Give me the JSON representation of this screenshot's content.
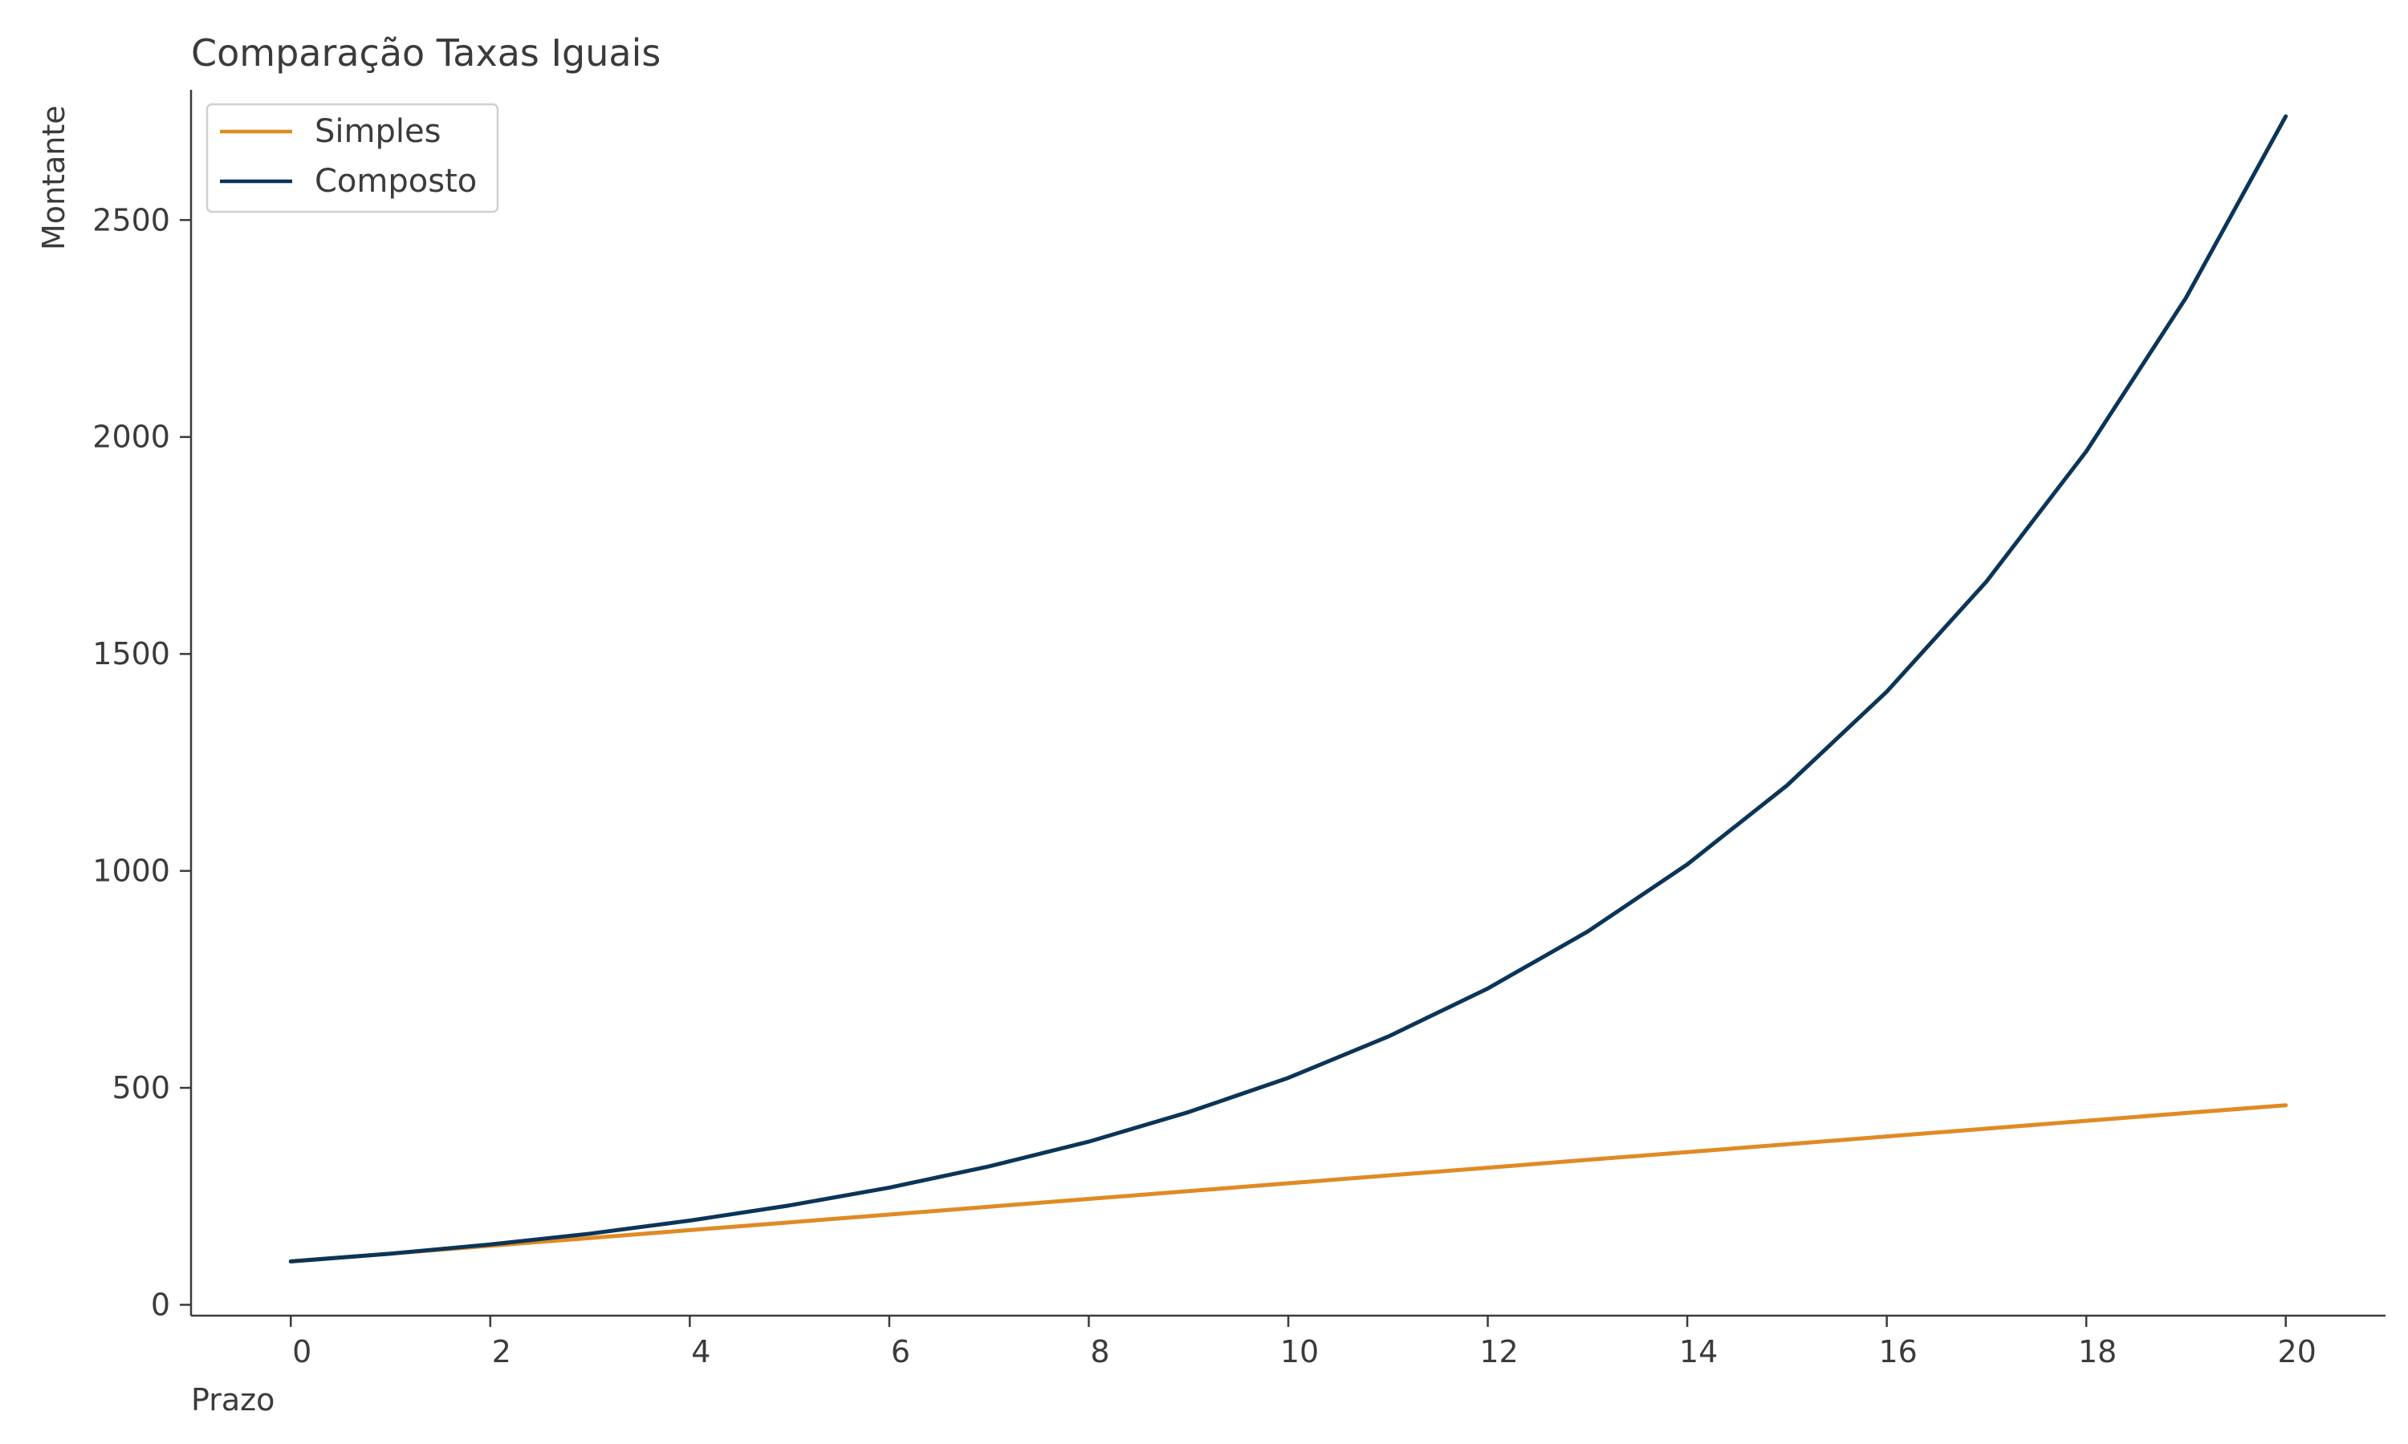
{
  "chart_data": {
    "type": "line",
    "title": "Comparação Taxas Iguais",
    "xlabel": "Prazo",
    "ylabel": "Montante",
    "xlim": [
      -1,
      21
    ],
    "ylim": [
      -25,
      2800
    ],
    "x_ticks": [
      0,
      2,
      4,
      6,
      8,
      10,
      12,
      14,
      16,
      18,
      20
    ],
    "y_ticks": [
      0,
      500,
      1000,
      1500,
      2000,
      2500
    ],
    "x_tick_labels": [
      "0",
      "2",
      "4",
      "6",
      "8",
      "10",
      "12",
      "14",
      "16",
      "18",
      "20"
    ],
    "y_tick_labels": [
      "0",
      "500",
      "1000",
      "1500",
      "2000",
      "2500"
    ],
    "grid": false,
    "legend_position": "top-left",
    "x": [
      0,
      1,
      2,
      3,
      4,
      5,
      6,
      7,
      8,
      9,
      10,
      11,
      12,
      13,
      14,
      15,
      16,
      17,
      18,
      19,
      20
    ],
    "series": [
      {
        "name": "Simples",
        "color": "#e08a24",
        "values": [
          100,
          118,
          136,
          154,
          172,
          190,
          208,
          226,
          244,
          262,
          280,
          298,
          316,
          334,
          352,
          370,
          388,
          406,
          424,
          442,
          460
        ]
      },
      {
        "name": "Composto",
        "color": "#0b3558",
        "values": [
          100,
          118,
          139,
          164,
          194,
          229,
          270,
          319,
          376,
          444,
          523,
          618,
          729,
          860,
          1015,
          1197,
          1413,
          1667,
          1967,
          2321,
          2739
        ]
      }
    ]
  }
}
